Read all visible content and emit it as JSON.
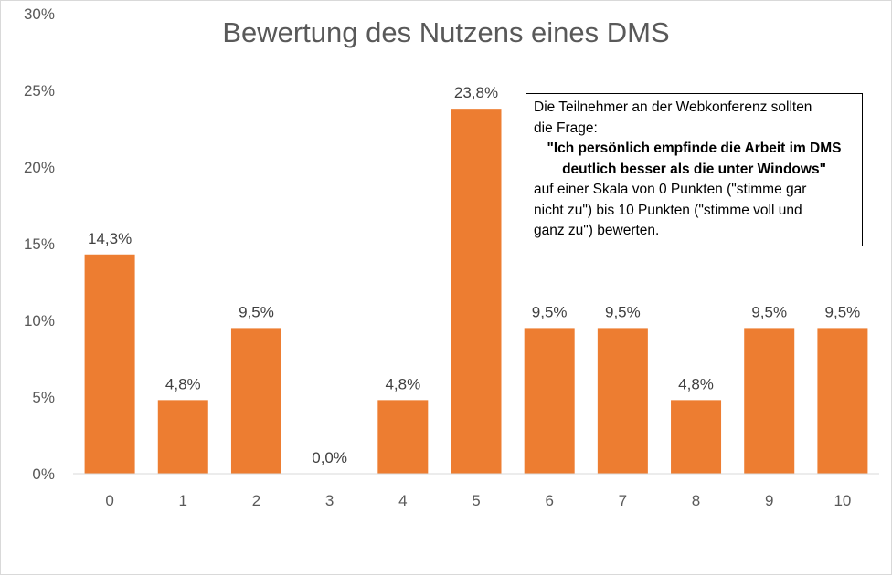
{
  "chart_data": {
    "type": "bar",
    "title": "Bewertung des Nutzens eines DMS",
    "categories": [
      "0",
      "1",
      "2",
      "3",
      "4",
      "5",
      "6",
      "7",
      "8",
      "9",
      "10"
    ],
    "values": [
      14.3,
      4.8,
      9.5,
      0.0,
      4.8,
      23.8,
      9.5,
      9.5,
      4.8,
      9.5,
      9.5
    ],
    "value_labels": [
      "14,3%",
      "4,8%",
      "9,5%",
      "0,0%",
      "4,8%",
      "23,8%",
      "9,5%",
      "9,5%",
      "4,8%",
      "9,5%",
      "9,5%"
    ],
    "y_ticks": [
      0,
      5,
      10,
      15,
      20,
      25,
      30
    ],
    "y_tick_labels": [
      "0%",
      "5%",
      "10%",
      "15%",
      "20%",
      "25%",
      "30%"
    ],
    "ylim": [
      0,
      30
    ],
    "xlabel": "",
    "ylabel": "",
    "grid": false,
    "bar_color": "#ed7d31"
  },
  "annotation": {
    "line1": "Die Teilnehmer an der Webkonferenz sollten",
    "line2": "die Frage:",
    "question1": "\"Ich persönlich empfinde die Arbeit im DMS",
    "question2": "deutlich besser als die unter Windows\"",
    "line3": "auf einer Skala von 0 Punkten (\"stimme gar",
    "line4": "nicht zu\") bis 10 Punkten (\"stimme voll und",
    "line5": "ganz zu\") bewerten."
  }
}
